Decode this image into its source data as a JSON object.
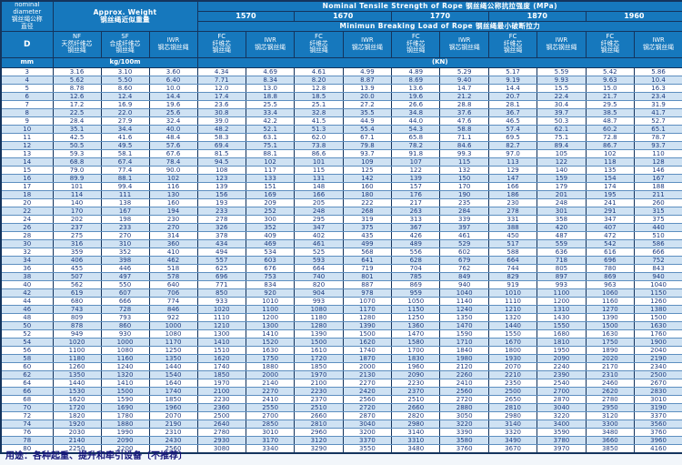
{
  "table": {
    "corner": {
      "title": "nominal\ndiameter\n钢丝绳公称\n直径",
      "d_label": "D",
      "unit": "mm"
    },
    "weight_group": {
      "title": "Approx. Weight\n钢丝绳近似重量",
      "unit": "kg/100m",
      "columns": [
        {
          "code": "NF",
          "label": "NF\n天然纤维芯\n钢丝绳"
        },
        {
          "code": "SF",
          "label": "SF\n合成纤维芯\n钢丝绳"
        },
        {
          "code": "IWR",
          "label": "IWR\n钢芯钢丝绳"
        }
      ]
    },
    "strength_group": {
      "title": "Nominal Tensile Strength of Rope 钢丝绳公称抗拉强度 (MPa)",
      "breaking_title": "Minimun Breaking Load of Rope 钢丝绳最小破断拉力",
      "strengths": [
        "1570",
        "1670",
        "1770",
        "1870",
        "1960"
      ],
      "sub_columns": [
        {
          "code": "FC",
          "label": "FC\n纤维芯\n钢丝绳"
        },
        {
          "code": "IWR",
          "label": "IWR\n钢芯钢丝绳"
        }
      ],
      "unit": "(KN)"
    }
  },
  "chart_data": {
    "type": "table",
    "columns": [
      "D mm",
      "NF kg/100m",
      "SF kg/100m",
      "IWR kg/100m",
      "FC 1570",
      "IWR 1570",
      "FC 1670",
      "IWR 1670",
      "FC 1770",
      "IWR 1770",
      "FC 1870",
      "IWR 1870",
      "FC 1960",
      "IWR 1960"
    ],
    "rows": [
      [
        "3",
        "3.16",
        "3.10",
        "3.60",
        "4.34",
        "4.69",
        "4.61",
        "4.99",
        "4.89",
        "5.29",
        "5.17",
        "5.59",
        "5.42",
        "5.86"
      ],
      [
        "4",
        "5.62",
        "5.50",
        "6.40",
        "7.71",
        "8.34",
        "8.20",
        "8.87",
        "8.69",
        "9.40",
        "9.19",
        "9.93",
        "9.63",
        "10.4"
      ],
      [
        "5",
        "8.78",
        "8.60",
        "10.0",
        "12.0",
        "13.0",
        "12.8",
        "13.9",
        "13.6",
        "14.7",
        "14.4",
        "15.5",
        "15.0",
        "16.3"
      ],
      [
        "6",
        "12.6",
        "12.4",
        "14.4",
        "17.4",
        "18.8",
        "18.5",
        "20.0",
        "19.6",
        "21.2",
        "20.7",
        "22.4",
        "21.7",
        "23.4"
      ],
      [
        "7",
        "17.2",
        "16.9",
        "19.6",
        "23.6",
        "25.5",
        "25.1",
        "27.2",
        "26.6",
        "28.8",
        "28.1",
        "30.4",
        "29.5",
        "31.9"
      ],
      [
        "8",
        "22.5",
        "22.0",
        "25.6",
        "30.8",
        "33.4",
        "32.8",
        "35.5",
        "34.8",
        "37.6",
        "36.7",
        "39.7",
        "38.5",
        "41.7"
      ],
      [
        "9",
        "28.4",
        "27.9",
        "32.4",
        "39.0",
        "42.2",
        "41.5",
        "44.9",
        "44.0",
        "47.6",
        "46.5",
        "50.3",
        "48.7",
        "52.7"
      ],
      [
        "10",
        "35.1",
        "34.4",
        "40.0",
        "48.2",
        "52.1",
        "51.3",
        "55.4",
        "54.3",
        "58.8",
        "57.4",
        "62.1",
        "60.2",
        "65.1"
      ],
      [
        "11",
        "42.5",
        "41.6",
        "48.4",
        "58.3",
        "63.1",
        "62.0",
        "67.1",
        "65.8",
        "71.1",
        "69.5",
        "75.1",
        "72.8",
        "78.7"
      ],
      [
        "12",
        "50.5",
        "49.5",
        "57.6",
        "69.4",
        "75.1",
        "73.8",
        "79.8",
        "78.2",
        "84.6",
        "82.7",
        "89.4",
        "86.7",
        "93.7"
      ],
      [
        "13",
        "59.3",
        "58.1",
        "67.6",
        "81.5",
        "88.1",
        "86.6",
        "93.7",
        "91.8",
        "99.3",
        "97.0",
        "105",
        "102",
        "110"
      ],
      [
        "14",
        "68.8",
        "67.4",
        "78.4",
        "94.5",
        "102",
        "101",
        "109",
        "107",
        "115",
        "113",
        "122",
        "118",
        "128"
      ],
      [
        "15",
        "79.0",
        "77.4",
        "90.0",
        "108",
        "117",
        "115",
        "125",
        "122",
        "132",
        "129",
        "140",
        "135",
        "146"
      ],
      [
        "16",
        "89.9",
        "88.1",
        "102",
        "123",
        "133",
        "131",
        "142",
        "139",
        "150",
        "147",
        "159",
        "154",
        "167"
      ],
      [
        "17",
        "101",
        "99.4",
        "116",
        "139",
        "151",
        "148",
        "160",
        "157",
        "170",
        "166",
        "179",
        "174",
        "188"
      ],
      [
        "18",
        "114",
        "111",
        "130",
        "156",
        "169",
        "166",
        "180",
        "176",
        "190",
        "186",
        "201",
        "195",
        "211"
      ],
      [
        "20",
        "140",
        "138",
        "160",
        "193",
        "209",
        "205",
        "222",
        "217",
        "235",
        "230",
        "248",
        "241",
        "260"
      ],
      [
        "22",
        "170",
        "167",
        "194",
        "233",
        "252",
        "248",
        "268",
        "263",
        "284",
        "278",
        "301",
        "291",
        "315"
      ],
      [
        "24",
        "202",
        "198",
        "230",
        "278",
        "300",
        "295",
        "319",
        "313",
        "339",
        "331",
        "358",
        "347",
        "375"
      ],
      [
        "26",
        "237",
        "233",
        "270",
        "326",
        "352",
        "347",
        "375",
        "367",
        "397",
        "388",
        "420",
        "407",
        "440"
      ],
      [
        "28",
        "275",
        "270",
        "314",
        "378",
        "409",
        "402",
        "435",
        "426",
        "461",
        "450",
        "487",
        "472",
        "510"
      ],
      [
        "30",
        "316",
        "310",
        "360",
        "434",
        "469",
        "461",
        "499",
        "489",
        "529",
        "517",
        "559",
        "542",
        "586"
      ],
      [
        "32",
        "359",
        "352",
        "410",
        "494",
        "534",
        "525",
        "568",
        "556",
        "602",
        "588",
        "636",
        "616",
        "666"
      ],
      [
        "34",
        "406",
        "398",
        "462",
        "557",
        "603",
        "593",
        "641",
        "628",
        "679",
        "664",
        "718",
        "696",
        "752"
      ],
      [
        "36",
        "455",
        "446",
        "518",
        "625",
        "676",
        "664",
        "719",
        "704",
        "762",
        "744",
        "805",
        "780",
        "843"
      ],
      [
        "38",
        "507",
        "497",
        "578",
        "696",
        "753",
        "740",
        "801",
        "785",
        "849",
        "829",
        "897",
        "869",
        "940"
      ],
      [
        "40",
        "562",
        "550",
        "640",
        "771",
        "834",
        "820",
        "887",
        "869",
        "940",
        "919",
        "993",
        "963",
        "1040"
      ],
      [
        "42",
        "619",
        "607",
        "706",
        "850",
        "920",
        "904",
        "978",
        "959",
        "1040",
        "1010",
        "1100",
        "1060",
        "1150"
      ],
      [
        "44",
        "680",
        "666",
        "774",
        "933",
        "1010",
        "993",
        "1070",
        "1050",
        "1140",
        "1110",
        "1200",
        "1160",
        "1260"
      ],
      [
        "46",
        "743",
        "728",
        "846",
        "1020",
        "1100",
        "1080",
        "1170",
        "1150",
        "1240",
        "1210",
        "1310",
        "1270",
        "1380"
      ],
      [
        "48",
        "809",
        "793",
        "922",
        "1110",
        "1200",
        "1180",
        "1280",
        "1250",
        "1350",
        "1320",
        "1430",
        "1390",
        "1500"
      ],
      [
        "50",
        "878",
        "860",
        "1000",
        "1210",
        "1300",
        "1280",
        "1390",
        "1360",
        "1470",
        "1440",
        "1550",
        "1500",
        "1630"
      ],
      [
        "52",
        "949",
        "930",
        "1080",
        "1300",
        "1410",
        "1390",
        "1500",
        "1470",
        "1590",
        "1550",
        "1680",
        "1630",
        "1760"
      ],
      [
        "54",
        "1020",
        "1000",
        "1170",
        "1410",
        "1520",
        "1500",
        "1620",
        "1580",
        "1710",
        "1670",
        "1810",
        "1750",
        "1900"
      ],
      [
        "56",
        "1100",
        "1080",
        "1250",
        "1510",
        "1630",
        "1610",
        "1740",
        "1700",
        "1840",
        "1800",
        "1950",
        "1890",
        "2040"
      ],
      [
        "58",
        "1180",
        "1160",
        "1350",
        "1620",
        "1750",
        "1720",
        "1870",
        "1830",
        "1980",
        "1930",
        "2090",
        "2020",
        "2190"
      ],
      [
        "60",
        "1260",
        "1240",
        "1440",
        "1740",
        "1880",
        "1850",
        "2000",
        "1960",
        "2120",
        "2070",
        "2240",
        "2170",
        "2340"
      ],
      [
        "62",
        "1350",
        "1320",
        "1540",
        "1850",
        "2000",
        "1970",
        "2130",
        "2090",
        "2260",
        "2210",
        "2390",
        "2310",
        "2500"
      ],
      [
        "64",
        "1440",
        "1410",
        "1640",
        "1970",
        "2140",
        "2100",
        "2270",
        "2230",
        "2410",
        "2350",
        "2540",
        "2460",
        "2670"
      ],
      [
        "66",
        "1530",
        "1500",
        "1740",
        "2100",
        "2270",
        "2230",
        "2420",
        "2370",
        "2560",
        "2500",
        "2700",
        "2620",
        "2830"
      ],
      [
        "68",
        "1620",
        "1590",
        "1850",
        "2230",
        "2410",
        "2370",
        "2560",
        "2510",
        "2720",
        "2650",
        "2870",
        "2780",
        "3010"
      ],
      [
        "70",
        "1720",
        "1690",
        "1960",
        "2360",
        "2550",
        "2510",
        "2720",
        "2660",
        "2880",
        "2810",
        "3040",
        "2950",
        "3190"
      ],
      [
        "72",
        "1820",
        "1780",
        "2070",
        "2500",
        "2700",
        "2660",
        "2870",
        "2820",
        "3050",
        "2980",
        "3220",
        "3120",
        "3370"
      ],
      [
        "74",
        "1920",
        "1880",
        "2190",
        "2640",
        "2850",
        "2810",
        "3040",
        "2980",
        "3220",
        "3140",
        "3400",
        "3300",
        "3560"
      ],
      [
        "76",
        "2030",
        "1990",
        "2310",
        "2780",
        "3010",
        "2960",
        "3200",
        "3140",
        "3390",
        "3320",
        "3590",
        "3480",
        "3760"
      ],
      [
        "78",
        "2140",
        "2090",
        "2430",
        "2930",
        "3170",
        "3120",
        "3370",
        "3310",
        "3580",
        "3490",
        "3780",
        "3660",
        "3960"
      ],
      [
        "80",
        "2250",
        "2200",
        "2560",
        "3080",
        "3340",
        "3290",
        "3550",
        "3480",
        "3760",
        "3670",
        "3970",
        "3850",
        "4160"
      ]
    ]
  },
  "footer": {
    "text": "用途：各种起重、提升和牵引设备〔不推荐〕"
  },
  "colors": {
    "header_bg": "#1678bd",
    "header_text": "#ffffff",
    "border_dark": "#14345d",
    "row_alt": "#cfe2f3",
    "row_white": "#ffffff",
    "data_text": "#1c3a7e",
    "footer_text": "#15157a"
  }
}
